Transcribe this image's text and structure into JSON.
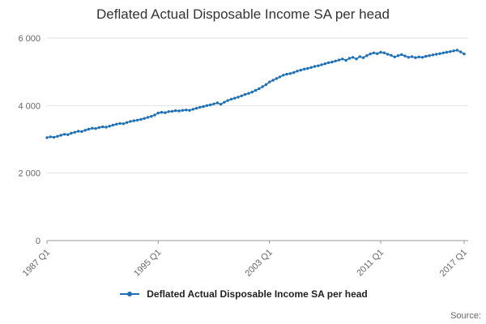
{
  "title": "Deflated Actual Disposable Income SA per head",
  "legend": {
    "label": "Deflated Actual Disposable Income SA per head"
  },
  "source": {
    "label": "Source:"
  },
  "chart_data": {
    "type": "line",
    "title": "Deflated Actual Disposable Income SA per head",
    "xlabel": "",
    "ylabel": "",
    "x_range": [
      "1987 Q1",
      "2017 Q1"
    ],
    "frequency": "quarterly",
    "ylim": [
      0,
      6000
    ],
    "grid": "horizontal",
    "legend_position": "bottom",
    "line_color": "#1d70b8",
    "x_ticks": [
      {
        "index": 0,
        "label": "1987 Q1"
      },
      {
        "index": 32,
        "label": "1995 Q1"
      },
      {
        "index": 64,
        "label": "2003 Q1"
      },
      {
        "index": 96,
        "label": "2011 Q1"
      },
      {
        "index": 120,
        "label": "2017 Q1"
      }
    ],
    "y_ticks": [
      {
        "value": 0,
        "label": "0"
      },
      {
        "value": 2000,
        "label": "2 000"
      },
      {
        "value": 4000,
        "label": "4 000"
      },
      {
        "value": 6000,
        "label": "6 000"
      }
    ],
    "series": [
      {
        "name": "Deflated Actual Disposable Income SA per head",
        "values": [
          3050,
          3075,
          3060,
          3090,
          3120,
          3150,
          3140,
          3180,
          3210,
          3240,
          3230,
          3270,
          3300,
          3330,
          3320,
          3350,
          3370,
          3360,
          3390,
          3420,
          3450,
          3470,
          3460,
          3500,
          3530,
          3550,
          3570,
          3590,
          3620,
          3650,
          3680,
          3720,
          3780,
          3800,
          3790,
          3820,
          3830,
          3850,
          3840,
          3860,
          3870,
          3860,
          3890,
          3920,
          3950,
          3970,
          4000,
          4020,
          4050,
          4080,
          4040,
          4100,
          4150,
          4190,
          4220,
          4250,
          4290,
          4330,
          4360,
          4400,
          4450,
          4500,
          4560,
          4620,
          4700,
          4750,
          4800,
          4850,
          4900,
          4930,
          4950,
          4980,
          5020,
          5050,
          5080,
          5100,
          5130,
          5160,
          5180,
          5210,
          5240,
          5270,
          5290,
          5320,
          5350,
          5380,
          5340,
          5400,
          5430,
          5380,
          5450,
          5420,
          5480,
          5530,
          5560,
          5540,
          5580,
          5560,
          5520,
          5490,
          5440,
          5480,
          5510,
          5470,
          5430,
          5450,
          5420,
          5440,
          5430,
          5460,
          5480,
          5500,
          5520,
          5540,
          5560,
          5580,
          5600,
          5620,
          5640,
          5590,
          5530
        ]
      }
    ]
  }
}
